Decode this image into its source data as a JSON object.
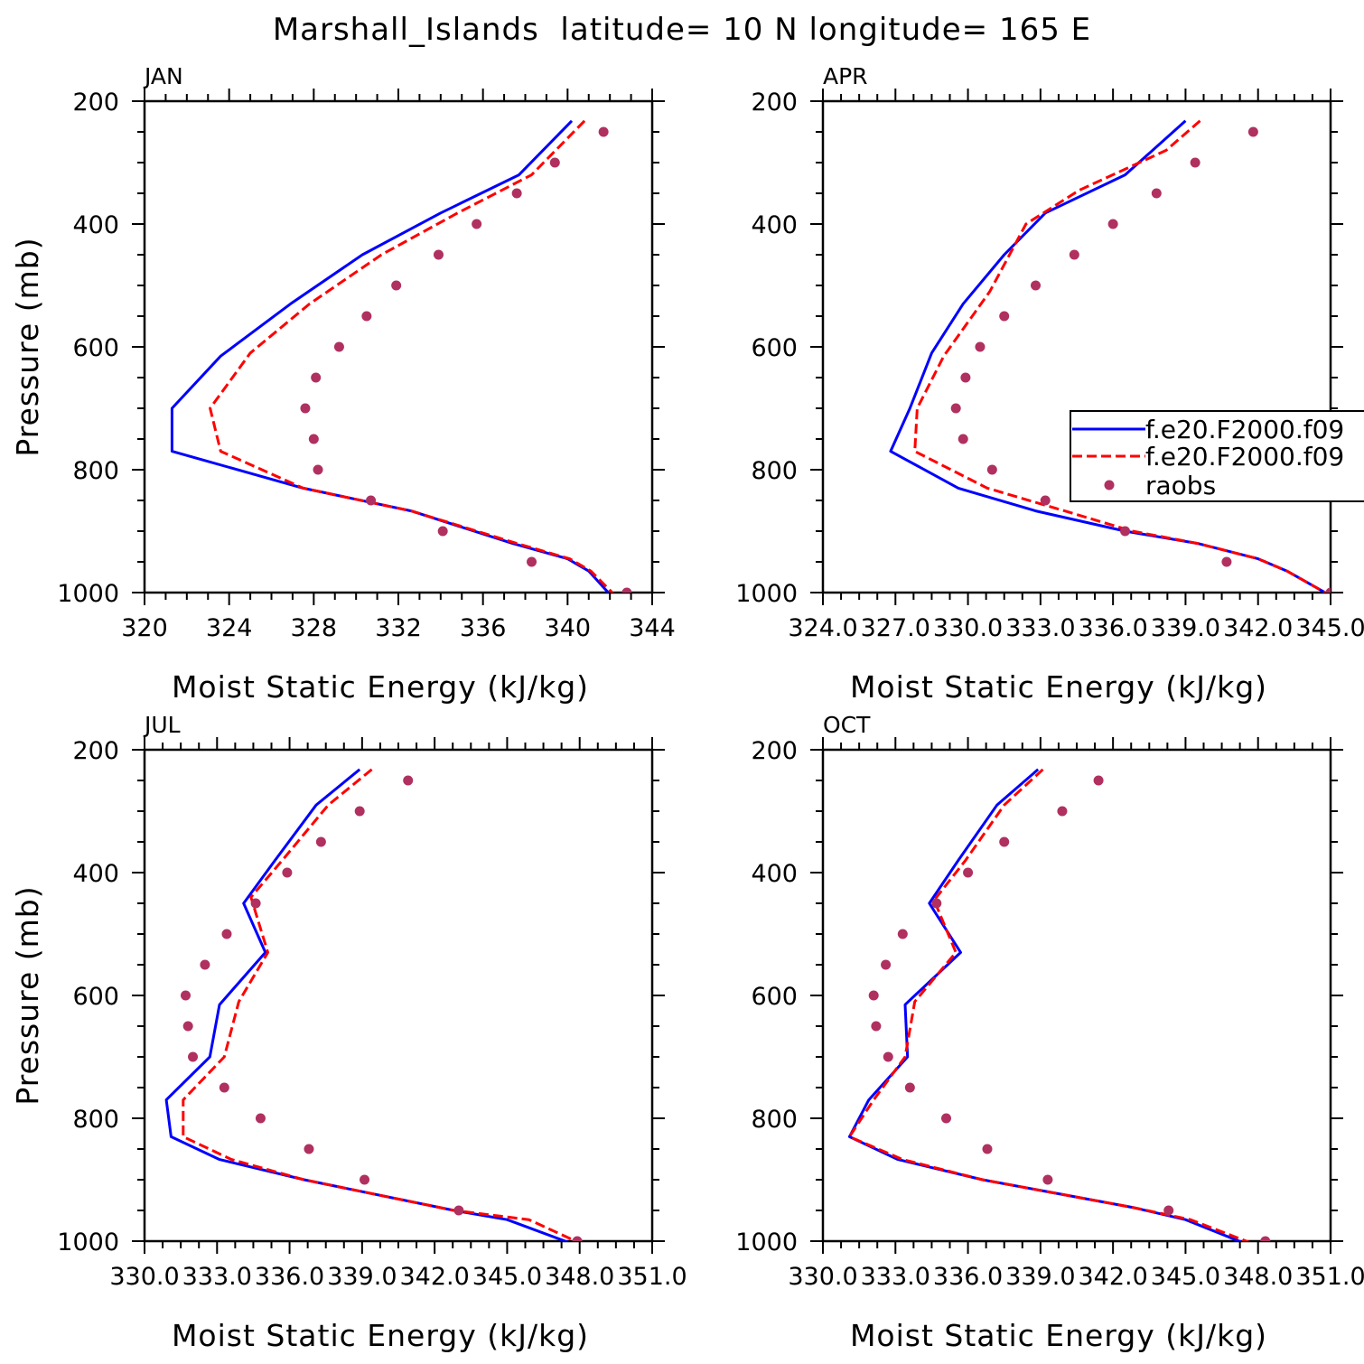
{
  "title": "Marshall_Islands  latitude= 10 N longitude= 165 E",
  "legend": {
    "entries": [
      {
        "label": "f.e20.F2000.f09",
        "style": "solid",
        "color": "#0000ff"
      },
      {
        "label": "f.e20.F2000.f09",
        "style": "dashed",
        "color": "#ff0000"
      },
      {
        "label": "raobs",
        "style": "dots",
        "color": "#b03060"
      }
    ]
  },
  "chart_data": [
    {
      "type": "line",
      "title": "JAN",
      "xlabel": "Moist Static Energy (kJ/kg)",
      "ylabel": "Pressure (mb)",
      "xlim": [
        320,
        344
      ],
      "ylim": [
        200,
        1000
      ],
      "xticks": [
        320,
        324,
        328,
        332,
        336,
        340,
        344
      ],
      "xtick_labels": [
        "320",
        "324",
        "328",
        "332",
        "336",
        "340",
        "344"
      ],
      "yticks": [
        200,
        400,
        600,
        800,
        1000
      ],
      "ytick_labels": [
        "200",
        "400",
        "600",
        "800",
        "1000"
      ],
      "series": [
        {
          "name": "f.e20.F2000.f09",
          "style": "solid",
          "color": "#0000ff",
          "x": [
            340.2,
            337.7,
            334.0,
            330.3,
            326.9,
            323.6,
            321.3,
            321.3,
            327.5,
            332.6,
            337.4,
            340.0,
            341.0,
            342.0
          ],
          "y": [
            232,
            320,
            382,
            450,
            530,
            615,
            700,
            770,
            830,
            867,
            920,
            945,
            965,
            1003
          ]
        },
        {
          "name": "f.e20.F2000.f09",
          "style": "dashed",
          "color": "#ff0000",
          "x": [
            340.8,
            338.3,
            334.8,
            331.2,
            327.8,
            325.0,
            323.1,
            323.6,
            327.5,
            332.6,
            337.6,
            340.1,
            341.1,
            342.2
          ],
          "y": [
            232,
            320,
            382,
            450,
            530,
            610,
            700,
            770,
            830,
            867,
            920,
            945,
            965,
            1003
          ]
        },
        {
          "name": "raobs",
          "style": "dots",
          "color": "#b03060",
          "x": [
            341.7,
            339.4,
            337.6,
            335.7,
            333.9,
            331.9,
            330.5,
            329.2,
            328.1,
            327.6,
            328.0,
            328.2,
            330.7,
            334.1,
            338.3,
            342.8
          ],
          "y": [
            250,
            300,
            350,
            400,
            450,
            500,
            550,
            600,
            650,
            700,
            750,
            800,
            850,
            900,
            950,
            1000
          ]
        }
      ]
    },
    {
      "type": "line",
      "title": "APR",
      "xlabel": "Moist Static Energy (kJ/kg)",
      "ylabel": "",
      "xlim": [
        324.0,
        345.0
      ],
      "ylim": [
        200,
        1000
      ],
      "xticks": [
        324,
        327,
        330,
        333,
        336,
        339,
        342,
        345
      ],
      "xtick_labels": [
        "324.0",
        "327.0",
        "330.0",
        "333.0",
        "336.0",
        "339.0",
        "342.0",
        "345.0"
      ],
      "yticks": [
        200,
        400,
        600,
        800,
        1000
      ],
      "ytick_labels": [
        "200",
        "400",
        "600",
        "800",
        "1000"
      ],
      "series": [
        {
          "name": "f.e20.F2000.f09",
          "style": "solid",
          "color": "#0000ff",
          "x": [
            339.0,
            336.5,
            333.2,
            331.5,
            329.8,
            328.5,
            327.6,
            326.8,
            329.6,
            332.8,
            336.5,
            339.5,
            342.0,
            343.2,
            345.0
          ],
          "y": [
            232,
            320,
            382,
            450,
            530,
            610,
            700,
            770,
            830,
            867,
            900,
            920,
            945,
            965,
            1005
          ]
        },
        {
          "name": "f.e20.F2000.f09",
          "style": "dashed",
          "color": "#ff0000",
          "x": [
            339.6,
            338.2,
            334.6,
            332.4,
            330.9,
            329.0,
            327.9,
            327.8,
            330.8,
            334.0,
            336.8,
            339.5,
            342.0,
            343.2,
            345.0
          ],
          "y": [
            232,
            280,
            345,
            400,
            510,
            615,
            700,
            770,
            830,
            867,
            900,
            920,
            945,
            965,
            1005
          ]
        },
        {
          "name": "raobs",
          "style": "dots",
          "color": "#b03060",
          "x": [
            341.8,
            339.4,
            337.8,
            336.0,
            334.4,
            332.8,
            331.5,
            330.5,
            329.9,
            329.5,
            329.8,
            331.0,
            333.2,
            336.5,
            340.7,
            345.0
          ],
          "y": [
            250,
            300,
            350,
            400,
            450,
            500,
            550,
            600,
            650,
            700,
            750,
            800,
            850,
            900,
            950,
            1000
          ]
        }
      ]
    },
    {
      "type": "line",
      "title": "JUL",
      "xlabel": "Moist Static Energy (kJ/kg)",
      "ylabel": "Pressure (mb)",
      "xlim": [
        330.0,
        351.0
      ],
      "ylim": [
        200,
        1000
      ],
      "xticks": [
        330,
        333,
        336,
        339,
        342,
        345,
        348,
        351
      ],
      "xtick_labels": [
        "330.0",
        "333.0",
        "336.0",
        "339.0",
        "342.0",
        "345.0",
        "348.0",
        "351.0"
      ],
      "yticks": [
        200,
        400,
        600,
        800,
        1000
      ],
      "ytick_labels": [
        "200",
        "400",
        "600",
        "800",
        "1000"
      ],
      "series": [
        {
          "name": "f.e20.F2000.f09",
          "style": "solid",
          "color": "#0000ff",
          "x": [
            338.9,
            337.1,
            335.4,
            334.1,
            335.0,
            333.1,
            332.7,
            330.9,
            331.1,
            333.1,
            336.6,
            342.8,
            345.0,
            347.6
          ],
          "y": [
            232,
            290,
            380,
            450,
            530,
            615,
            700,
            770,
            830,
            867,
            900,
            950,
            965,
            1003
          ]
        },
        {
          "name": "f.e20.F2000.f09",
          "style": "dashed",
          "color": "#ff0000",
          "x": [
            339.4,
            337.6,
            335.7,
            334.4,
            335.1,
            333.9,
            333.3,
            331.6,
            331.6,
            333.6,
            336.6,
            342.8,
            345.9,
            348.0
          ],
          "y": [
            232,
            290,
            380,
            440,
            530,
            610,
            700,
            770,
            830,
            867,
            900,
            950,
            965,
            1003
          ]
        },
        {
          "name": "raobs",
          "style": "dots",
          "color": "#b03060",
          "x": [
            340.9,
            338.9,
            337.3,
            335.9,
            334.6,
            333.4,
            332.5,
            331.7,
            331.8,
            332.0,
            333.3,
            334.8,
            336.8,
            339.1,
            343.0,
            347.9
          ],
          "y": [
            250,
            300,
            350,
            400,
            450,
            500,
            550,
            600,
            650,
            700,
            750,
            800,
            850,
            900,
            950,
            1000
          ]
        }
      ]
    },
    {
      "type": "line",
      "title": "OCT",
      "xlabel": "Moist Static Energy (kJ/kg)",
      "ylabel": "",
      "xlim": [
        330.0,
        351.0
      ],
      "ylim": [
        200,
        1000
      ],
      "xticks": [
        330,
        333,
        336,
        339,
        342,
        345,
        348,
        351
      ],
      "xtick_labels": [
        "330.0",
        "333.0",
        "336.0",
        "339.0",
        "342.0",
        "345.0",
        "348.0",
        "351.0"
      ],
      "yticks": [
        200,
        400,
        600,
        800,
        1000
      ],
      "ytick_labels": [
        "200",
        "400",
        "600",
        "800",
        "1000"
      ],
      "series": [
        {
          "name": "f.e20.F2000.f09",
          "style": "solid",
          "color": "#0000ff",
          "x": [
            338.9,
            337.2,
            335.6,
            334.4,
            335.7,
            333.4,
            333.5,
            331.9,
            331.1,
            333.1,
            336.6,
            342.8,
            345.0,
            347.4
          ],
          "y": [
            232,
            290,
            380,
            450,
            530,
            615,
            700,
            770,
            830,
            867,
            900,
            945,
            965,
            1003
          ]
        },
        {
          "name": "f.e20.F2000.f09",
          "style": "dashed",
          "color": "#ff0000",
          "x": [
            339.1,
            337.5,
            335.9,
            334.6,
            335.5,
            333.8,
            333.4,
            332.1,
            331.1,
            333.3,
            336.6,
            342.8,
            345.2,
            347.7
          ],
          "y": [
            232,
            290,
            380,
            445,
            530,
            610,
            700,
            770,
            830,
            867,
            900,
            945,
            965,
            1003
          ]
        },
        {
          "name": "raobs",
          "style": "dots",
          "color": "#b03060",
          "x": [
            341.4,
            339.9,
            337.5,
            336.0,
            334.7,
            333.3,
            332.6,
            332.1,
            332.2,
            332.7,
            333.6,
            335.1,
            336.8,
            339.3,
            344.3,
            348.3
          ],
          "y": [
            250,
            300,
            350,
            400,
            450,
            500,
            550,
            600,
            650,
            700,
            750,
            800,
            850,
            900,
            950,
            1000
          ]
        }
      ]
    }
  ]
}
